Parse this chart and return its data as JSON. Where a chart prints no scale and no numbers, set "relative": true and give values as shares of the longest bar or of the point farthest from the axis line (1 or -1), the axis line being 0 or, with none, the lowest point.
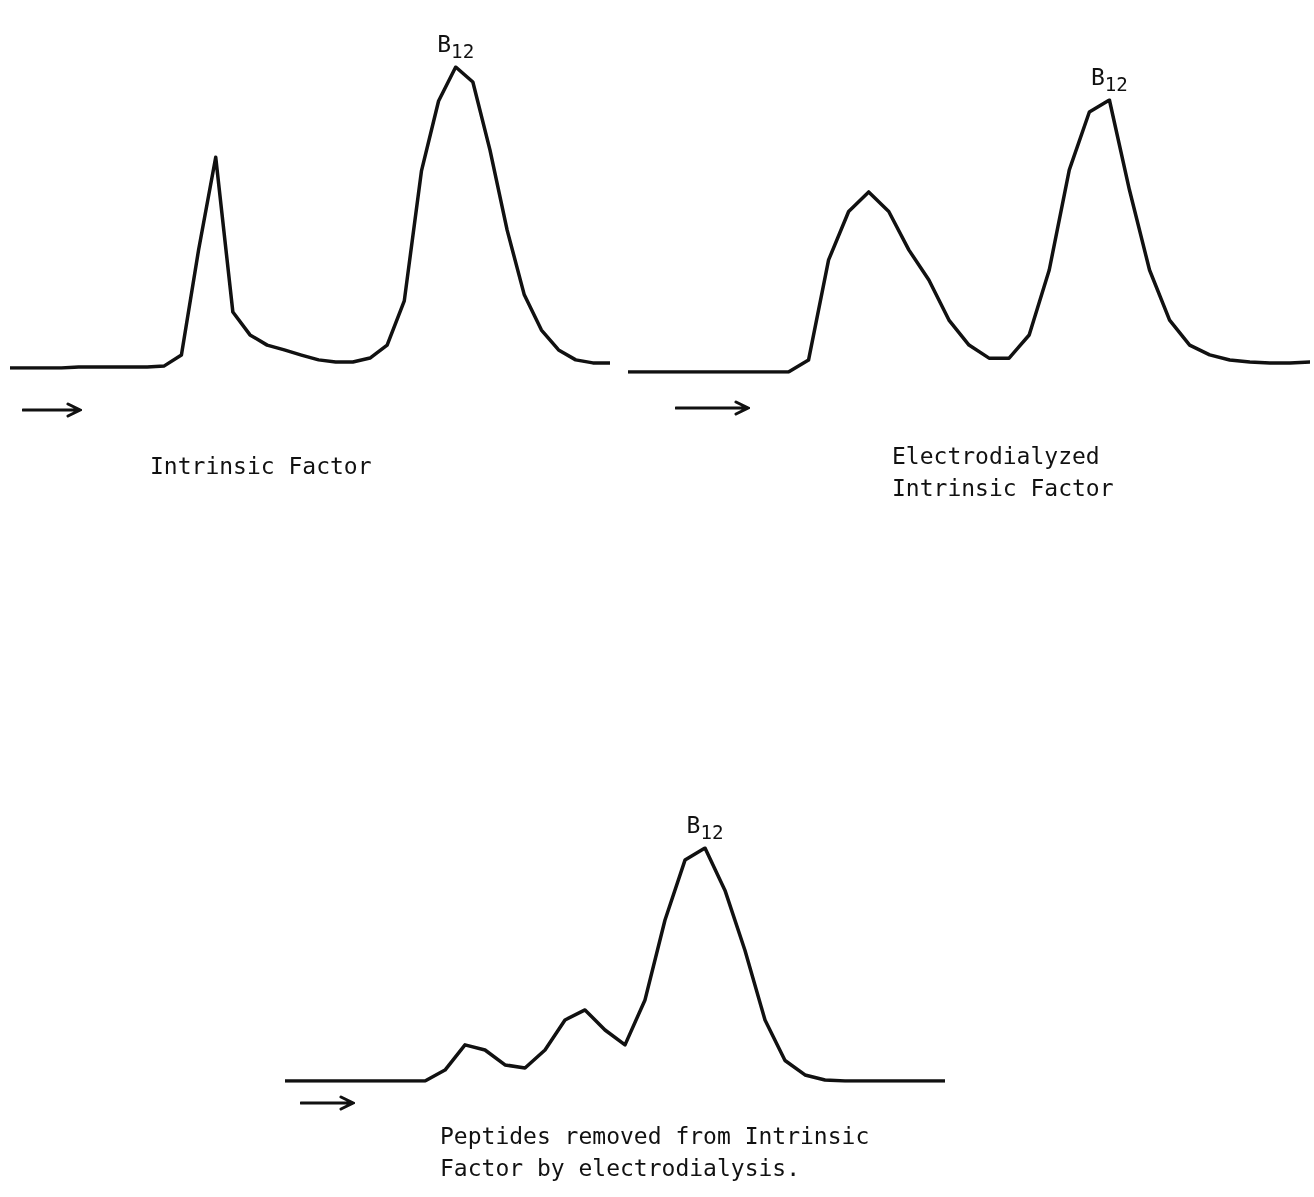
{
  "chart_data": [
    {
      "type": "line",
      "relative": true,
      "marker": "none",
      "line_style": "solid",
      "categories": [
        null,
        null,
        null,
        null,
        null,
        null,
        null,
        null,
        null,
        null,
        null,
        null,
        null,
        null,
        null,
        null,
        null,
        null,
        null,
        null,
        null,
        null,
        null,
        null,
        null,
        null,
        null,
        null,
        null,
        null,
        null,
        null,
        null,
        null,
        null,
        null
      ],
      "series": [
        {
          "color": "#111111",
          "values": [
            0,
            0,
            0,
            0,
            0.003,
            0.003,
            0.003,
            0.003,
            0.003,
            0.007,
            0.043,
            0.392,
            0.7,
            0.186,
            0.11,
            0.076,
            0.06,
            0.043,
            0.027,
            0.02,
            0.02,
            0.033,
            0.076,
            0.223,
            0.654,
            0.887,
            1,
            0.95,
            0.724,
            0.458,
            0.243,
            0.126,
            0.06,
            0.027,
            0.017,
            0.017
          ]
        }
      ],
      "annotations": [
        {
          "text": "B$_{12}$",
          "y": 1
        },
        "Intrinsic Factor"
      ]
    },
    {
      "type": "line",
      "relative": true,
      "marker": "none",
      "line_style": "solid",
      "categories": [
        null,
        null,
        null,
        null,
        null,
        null,
        null,
        null,
        null,
        null,
        null,
        null,
        null,
        null,
        null,
        null,
        null,
        null,
        null,
        null,
        null,
        null,
        null,
        null,
        null,
        null,
        null,
        null,
        null,
        null,
        null,
        null,
        null,
        null,
        null
      ],
      "series": [
        {
          "color": "#111111",
          "values": [
            0,
            0,
            0,
            0,
            0,
            0,
            0,
            0,
            0,
            0.044,
            0.412,
            0.59,
            0.662,
            0.59,
            0.449,
            0.338,
            0.191,
            0.099,
            0.051,
            0.051,
            0.136,
            0.375,
            0.743,
            0.956,
            1,
            0.669,
            0.375,
            0.191,
            0.099,
            0.063,
            0.044,
            0.037,
            0.033,
            0.033,
            0.037
          ]
        }
      ],
      "annotations": [
        {
          "text": "B$_{12}$",
          "y": 1
        },
        "Electrodialyzed Intrinsic Factor"
      ]
    },
    {
      "type": "line",
      "relative": true,
      "marker": "none",
      "line_style": "solid",
      "categories": [
        null,
        null,
        null,
        null,
        null,
        null,
        null,
        null,
        null,
        null,
        null,
        null,
        null,
        null,
        null,
        null,
        null,
        null,
        null,
        null,
        null,
        null,
        null,
        null,
        null,
        null,
        null,
        null,
        null,
        null,
        null,
        null,
        null,
        null
      ],
      "series": [
        {
          "color": "#111111",
          "values": [
            0,
            0,
            0,
            0,
            0,
            0,
            0,
            0,
            0.047,
            0.155,
            0.133,
            0.069,
            0.056,
            0.133,
            0.262,
            0.305,
            0.219,
            0.155,
            0.348,
            0.691,
            0.948,
            1,
            0.818,
            0.56,
            0.262,
            0.088,
            0.026,
            0.004,
            0,
            0,
            0,
            0,
            0,
            0
          ]
        }
      ],
      "annotations": [
        {
          "text": "B$_{12}$",
          "y": 1
        },
        "Peptides removed from Intrinsic Factor by electrodialysis."
      ]
    }
  ]
}
